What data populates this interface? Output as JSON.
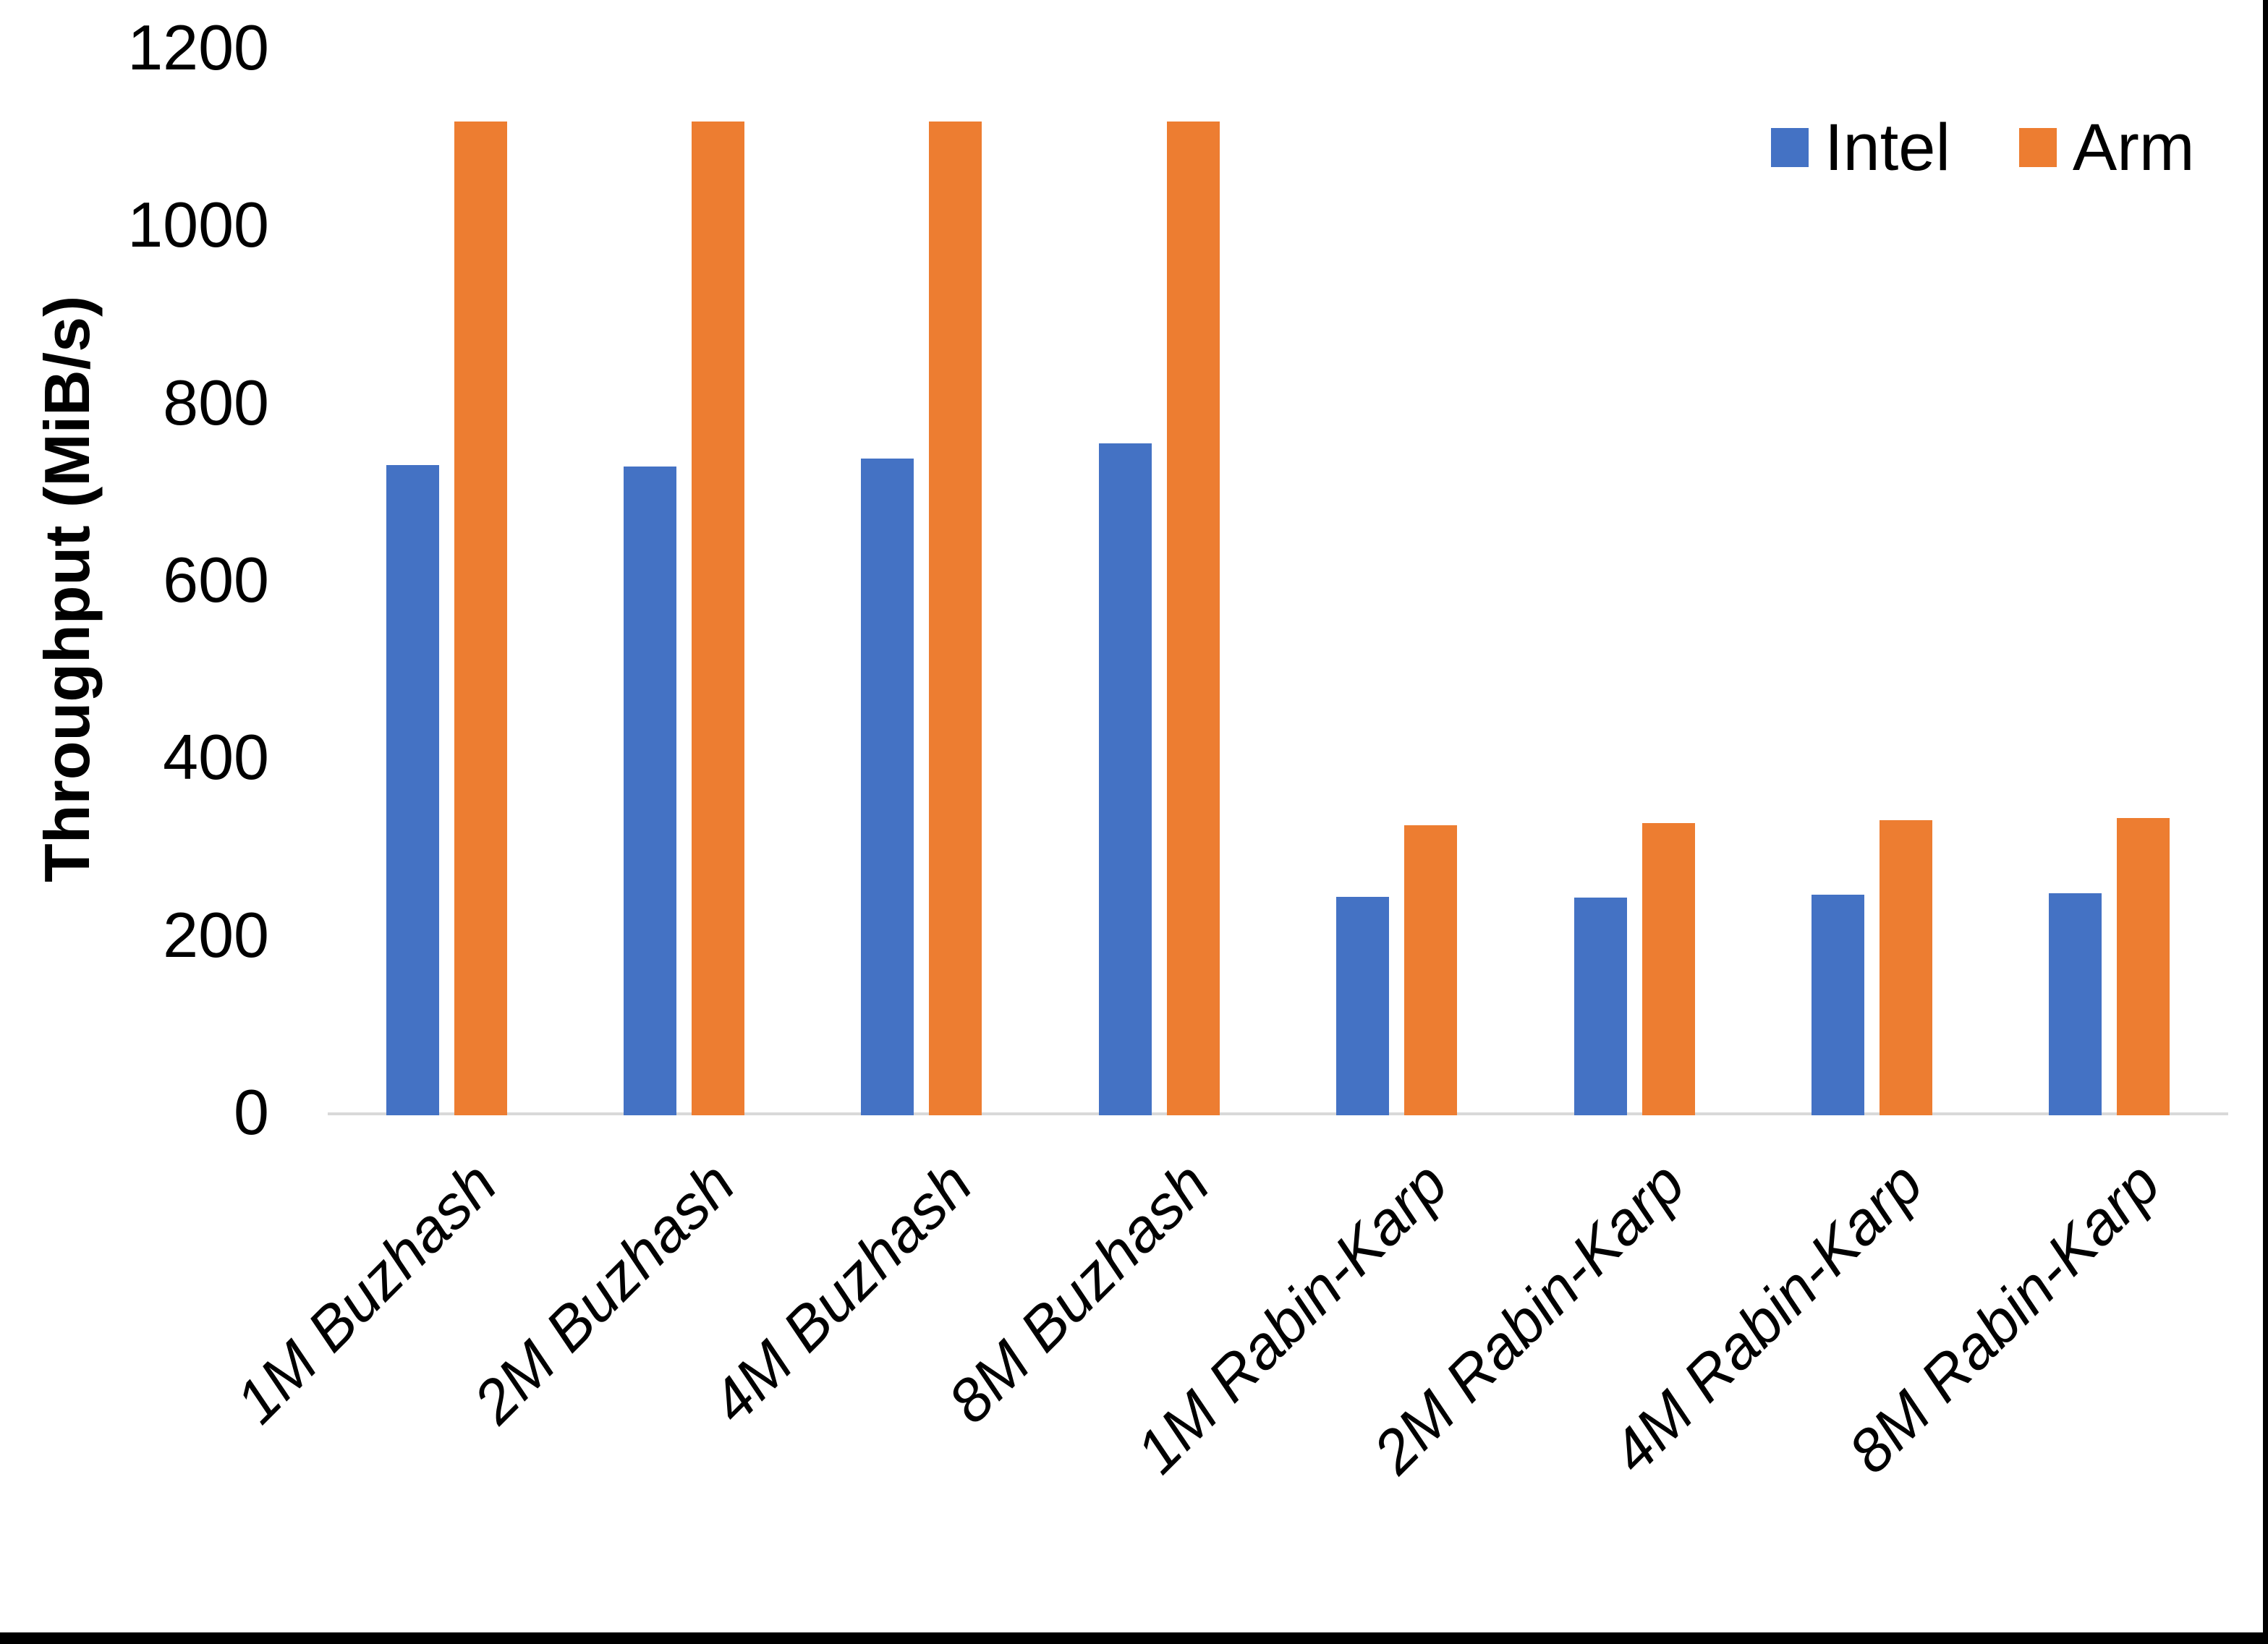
{
  "chart_data": {
    "type": "bar",
    "title": "",
    "xlabel": "",
    "ylabel": "Throughput (MiB/s)",
    "categories": [
      "1M Buzhash",
      "2M Buzhash",
      "4M Buzhash",
      "8M Buzhash",
      "1M Rabin-Karp",
      "2M Rabin-Karp",
      "4M Rabin-Karp",
      "8M Rabin-Karp"
    ],
    "series": [
      {
        "name": "Intel",
        "color": "#4472C4",
        "values": [
          733,
          731,
          740,
          757,
          246,
          245,
          249,
          250
        ]
      },
      {
        "name": "Arm",
        "color": "#ED7D31",
        "values": [
          1120,
          1120,
          1120,
          1120,
          327,
          329,
          333,
          335
        ]
      }
    ],
    "ylim": [
      0,
      1200
    ],
    "yticks": [
      0,
      200,
      400,
      600,
      800,
      1000,
      1200
    ],
    "grid": false,
    "legend_position": "top-right",
    "colors": {
      "axis_line": "#D9D9D9",
      "text": "#000000",
      "background": "#FFFFFF",
      "window_edge": "#000000"
    }
  }
}
